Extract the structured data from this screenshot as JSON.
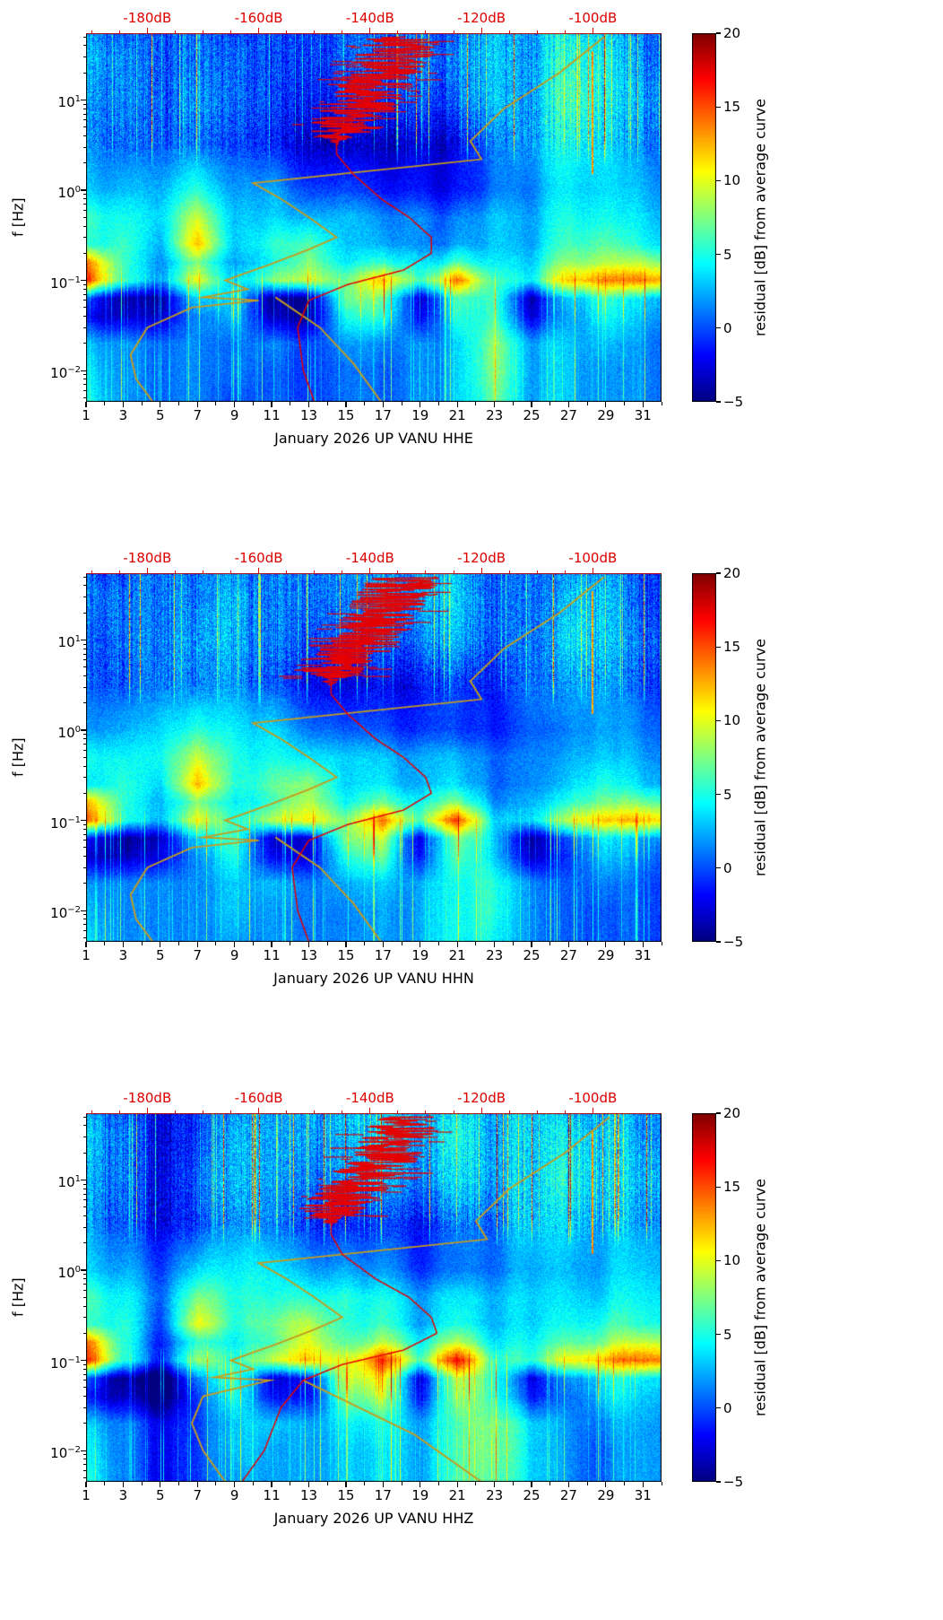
{
  "figure": {
    "ylabel": "f [Hz]",
    "colorbar_label": "residual [dB] from average curve",
    "colorbar_ticks": [
      "20",
      "15",
      "10",
      "5",
      "0",
      "−5"
    ],
    "colorbar_tick_values": [
      20,
      15,
      10,
      5,
      0,
      -5
    ],
    "x_ticks": [
      "1",
      "3",
      "5",
      "7",
      "9",
      "11",
      "13",
      "15",
      "17",
      "19",
      "21",
      "23",
      "25",
      "27",
      "29",
      "31"
    ],
    "x_tick_values": [
      1,
      3,
      5,
      7,
      9,
      11,
      13,
      15,
      17,
      19,
      21,
      23,
      25,
      27,
      29,
      31
    ],
    "y_ticks": [
      {
        "mant": "10",
        "exp": "1",
        "value": 10
      },
      {
        "mant": "10",
        "exp": "0",
        "value": 1
      },
      {
        "mant": "10",
        "exp": "−1",
        "value": 0.1
      },
      {
        "mant": "10",
        "exp": "−2",
        "value": 0.01
      }
    ],
    "top_ticks": [
      "-180dB",
      "-160dB",
      "-140dB",
      "-120dB",
      "-100dB"
    ],
    "top_tick_values": [
      -180,
      -160,
      -140,
      -120,
      -100
    ],
    "colors": {
      "curve_red": "#e60000",
      "curve_yellow": "#c49c20",
      "top_axis_red": "#dd0000",
      "top_spine_red": "#bb0000"
    }
  },
  "panels": [
    {
      "xlabel": "January 2026 UP VANU  HHE"
    },
    {
      "xlabel": "January 2026 UP VANU  HHN"
    },
    {
      "xlabel": "January 2026 UP VANU  HHZ"
    }
  ],
  "shared_grid": {
    "comment": "coarse residual-dB grid sampled from the spectrogram; rows = ascending log10(f), cols = days 1..31 step 2",
    "log10_f": [
      -2.35,
      -2.0,
      -1.7,
      -1.4,
      -1.2,
      -1.0,
      -0.8,
      -0.6,
      -0.3,
      0.0,
      0.5,
      1.0,
      1.5,
      1.74
    ],
    "days": [
      1,
      3,
      5,
      7,
      9,
      11,
      13,
      15,
      17,
      19,
      21,
      23,
      25,
      27,
      29,
      31
    ],
    "values": [
      [
        5,
        2,
        1,
        1,
        1,
        1,
        2,
        2,
        2,
        2,
        4,
        6,
        2,
        1,
        1,
        2
      ],
      [
        4,
        2,
        1,
        1,
        2,
        1,
        2,
        2,
        2,
        2,
        4,
        7,
        2,
        1,
        1,
        2
      ],
      [
        3,
        2,
        1,
        1,
        2,
        2,
        2,
        3,
        3,
        2,
        4,
        7,
        2,
        1,
        2,
        2
      ],
      [
        -2,
        -3,
        -3,
        1,
        4,
        -3,
        -2,
        6,
        7,
        -2,
        6,
        5,
        -3,
        0,
        4,
        3
      ],
      [
        0,
        -4,
        -4,
        3,
        5,
        -4,
        -2,
        8,
        9,
        -3,
        7,
        5,
        -4,
        1,
        5,
        4
      ],
      [
        16,
        6,
        2,
        10,
        4,
        8,
        12,
        8,
        14,
        6,
        15,
        5,
        4,
        10,
        13,
        14
      ],
      [
        14,
        6,
        2,
        7,
        3,
        5,
        10,
        5,
        7,
        4,
        7,
        3,
        3,
        6,
        8,
        9
      ],
      [
        5,
        6,
        3,
        12,
        4,
        6,
        9,
        4,
        4,
        2,
        3,
        2,
        2,
        4,
        6,
        5
      ],
      [
        6,
        5,
        4,
        9,
        4,
        4,
        5,
        4,
        3,
        2,
        2,
        2,
        2,
        3,
        4,
        4
      ],
      [
        3,
        3,
        3,
        5,
        3,
        3,
        2,
        1,
        0,
        -1,
        -1,
        0,
        1,
        2,
        3,
        3
      ],
      [
        2,
        1,
        1,
        1,
        1,
        0,
        -1,
        -2,
        -2,
        -2,
        -1,
        0,
        2,
        3,
        3,
        2
      ],
      [
        2,
        2,
        1,
        2,
        2,
        1,
        1,
        1,
        1,
        1,
        2,
        2,
        2,
        5,
        4,
        3
      ],
      [
        3,
        2,
        1,
        1,
        2,
        1,
        2,
        2,
        2,
        2,
        3,
        2,
        2,
        4,
        4,
        2
      ],
      [
        2,
        1,
        1,
        1,
        1,
        1,
        2,
        2,
        2,
        2,
        2,
        2,
        2,
        3,
        3,
        2
      ]
    ]
  },
  "chart_data": [
    {
      "type": "heatmap",
      "subtype": "spectrogram",
      "xlabel": "January 2026 UP VANU  HHE",
      "ylabel": "f [Hz]",
      "x_range_days": [
        1,
        32
      ],
      "x_tick_values": [
        1,
        3,
        5,
        7,
        9,
        11,
        13,
        15,
        17,
        19,
        21,
        23,
        25,
        27,
        29,
        31
      ],
      "y_scale": "log",
      "y_range_hz": [
        0.0045,
        55
      ],
      "y_tick_values_hz": [
        10,
        1,
        0.1,
        0.01
      ],
      "top_axis": {
        "units": "dB",
        "tick_values": [
          -180,
          -160,
          -140,
          -120,
          -100
        ],
        "day_at_minus180": 4.3,
        "days_per_20db": 6.0
      },
      "colorbar": {
        "label": "residual [dB] from average curve",
        "range": [
          -5,
          20
        ],
        "tick_values": [
          20,
          15,
          10,
          5,
          0,
          -5
        ],
        "colormap": "jet"
      },
      "grid": {
        "ref": "shared_grid"
      },
      "event_line": {
        "day": 28.3,
        "f_range": [
          1.5,
          35
        ],
        "value": 13
      },
      "curves": {
        "red": [
          [
            0.0045,
            -150
          ],
          [
            0.01,
            -152
          ],
          [
            0.03,
            -153
          ],
          [
            0.06,
            -151
          ],
          [
            0.09,
            -144
          ],
          [
            0.13,
            -134
          ],
          [
            0.2,
            -129
          ],
          [
            0.3,
            -129
          ],
          [
            0.5,
            -133
          ],
          [
            0.8,
            -138
          ],
          [
            1.5,
            -143
          ],
          [
            2.5,
            -146
          ],
          [
            4,
            -146
          ],
          [
            6,
            -144
          ],
          [
            10,
            -141
          ],
          [
            18,
            -138
          ],
          [
            30,
            -136
          ],
          [
            50,
            -134
          ]
        ],
        "yellow": [
          [
            0.0045,
            -179
          ],
          [
            0.008,
            -182
          ],
          [
            0.015,
            -183
          ],
          [
            0.03,
            -180
          ],
          [
            0.05,
            -172
          ],
          [
            0.06,
            -160
          ],
          [
            0.065,
            -170
          ],
          [
            0.08,
            -162
          ],
          [
            0.1,
            -166
          ],
          [
            0.15,
            -158
          ],
          [
            0.22,
            -151
          ],
          [
            0.3,
            -146
          ],
          [
            0.5,
            -151
          ],
          [
            0.8,
            -156
          ],
          [
            1.2,
            -161
          ],
          [
            2.2,
            -120
          ],
          [
            3.5,
            -122
          ],
          [
            8,
            -116
          ],
          [
            20,
            -106
          ],
          [
            50,
            -98
          ]
        ],
        "yellow_branch": [
          [
            0.065,
            -157
          ],
          [
            0.03,
            -149
          ],
          [
            0.012,
            -143
          ],
          [
            0.0045,
            -138
          ]
        ]
      },
      "seed": 11
    },
    {
      "type": "heatmap",
      "subtype": "spectrogram",
      "xlabel": "January 2026 UP VANU  HHN",
      "x_range_days": [
        1,
        32
      ],
      "y_scale": "log",
      "y_range_hz": [
        0.0045,
        55
      ],
      "top_axis": {
        "units": "dB",
        "tick_values": [
          -180,
          -160,
          -140,
          -120,
          -100
        ],
        "day_at_minus180": 4.3,
        "days_per_20db": 6.0
      },
      "colorbar": {
        "label": "residual [dB] from average curve",
        "range": [
          -5,
          20
        ],
        "tick_values": [
          20,
          15,
          10,
          5,
          0,
          -5
        ],
        "colormap": "jet"
      },
      "grid": {
        "ref": "shared_grid"
      },
      "event_line": {
        "day": 28.3,
        "f_range": [
          1.5,
          35
        ],
        "value": 13
      },
      "curves": {
        "red": [
          [
            0.0045,
            -151
          ],
          [
            0.01,
            -153
          ],
          [
            0.03,
            -154
          ],
          [
            0.06,
            -151
          ],
          [
            0.09,
            -144
          ],
          [
            0.13,
            -134
          ],
          [
            0.2,
            -129
          ],
          [
            0.3,
            -130
          ],
          [
            0.5,
            -134
          ],
          [
            0.8,
            -139
          ],
          [
            1.5,
            -144
          ],
          [
            2.5,
            -147
          ],
          [
            4,
            -147
          ],
          [
            6,
            -145
          ],
          [
            10,
            -141
          ],
          [
            18,
            -138
          ],
          [
            30,
            -136
          ],
          [
            50,
            -133
          ]
        ],
        "yellow": [
          [
            0.0045,
            -179
          ],
          [
            0.008,
            -182
          ],
          [
            0.015,
            -183
          ],
          [
            0.03,
            -180
          ],
          [
            0.05,
            -172
          ],
          [
            0.06,
            -160
          ],
          [
            0.065,
            -170
          ],
          [
            0.08,
            -162
          ],
          [
            0.1,
            -166
          ],
          [
            0.15,
            -158
          ],
          [
            0.22,
            -151
          ],
          [
            0.3,
            -146
          ],
          [
            0.5,
            -151
          ],
          [
            0.8,
            -156
          ],
          [
            1.2,
            -161
          ],
          [
            2.2,
            -120
          ],
          [
            3.5,
            -122
          ],
          [
            8,
            -116
          ],
          [
            20,
            -106
          ],
          [
            50,
            -98
          ]
        ],
        "yellow_branch": [
          [
            0.065,
            -157
          ],
          [
            0.03,
            -149
          ],
          [
            0.012,
            -143
          ],
          [
            0.0045,
            -138
          ]
        ]
      },
      "seed": 22
    },
    {
      "type": "heatmap",
      "subtype": "spectrogram",
      "xlabel": "January 2026 UP VANU  HHZ",
      "x_range_days": [
        1,
        32
      ],
      "y_scale": "log",
      "y_range_hz": [
        0.0045,
        55
      ],
      "top_axis": {
        "units": "dB",
        "tick_values": [
          -180,
          -160,
          -140,
          -120,
          -100
        ],
        "day_at_minus180": 4.3,
        "days_per_20db": 6.0
      },
      "colorbar": {
        "label": "residual [dB] from average curve",
        "range": [
          -5,
          20
        ],
        "tick_values": [
          20,
          15,
          10,
          5,
          0,
          -5
        ],
        "colormap": "jet"
      },
      "grid": {
        "ref": "shared_grid"
      },
      "event_line": {
        "day": 28.3,
        "f_range": [
          1.5,
          35
        ],
        "value": 13
      },
      "curves": {
        "red": [
          [
            0.0045,
            -163
          ],
          [
            0.01,
            -159
          ],
          [
            0.03,
            -156
          ],
          [
            0.06,
            -152
          ],
          [
            0.09,
            -145
          ],
          [
            0.13,
            -134
          ],
          [
            0.2,
            -128
          ],
          [
            0.3,
            -129
          ],
          [
            0.5,
            -133
          ],
          [
            0.8,
            -139
          ],
          [
            1.5,
            -145
          ],
          [
            2.5,
            -147
          ],
          [
            4,
            -147
          ],
          [
            6,
            -145
          ],
          [
            10,
            -141
          ],
          [
            18,
            -138
          ],
          [
            30,
            -135
          ],
          [
            50,
            -133
          ]
        ],
        "yellow": [
          [
            0.0045,
            -166
          ],
          [
            0.01,
            -170
          ],
          [
            0.02,
            -172
          ],
          [
            0.04,
            -170
          ],
          [
            0.06,
            -158
          ],
          [
            0.065,
            -168
          ],
          [
            0.08,
            -161
          ],
          [
            0.1,
            -165
          ],
          [
            0.15,
            -157
          ],
          [
            0.22,
            -150
          ],
          [
            0.3,
            -145
          ],
          [
            0.5,
            -150
          ],
          [
            0.8,
            -155
          ],
          [
            1.2,
            -160
          ],
          [
            2.2,
            -119
          ],
          [
            3.5,
            -121
          ],
          [
            8,
            -115
          ],
          [
            20,
            -105
          ],
          [
            50,
            -97
          ]
        ],
        "yellow_branch": [
          [
            0.06,
            -152
          ],
          [
            0.015,
            -132
          ],
          [
            0.0045,
            -120
          ]
        ]
      },
      "seed": 33
    }
  ]
}
